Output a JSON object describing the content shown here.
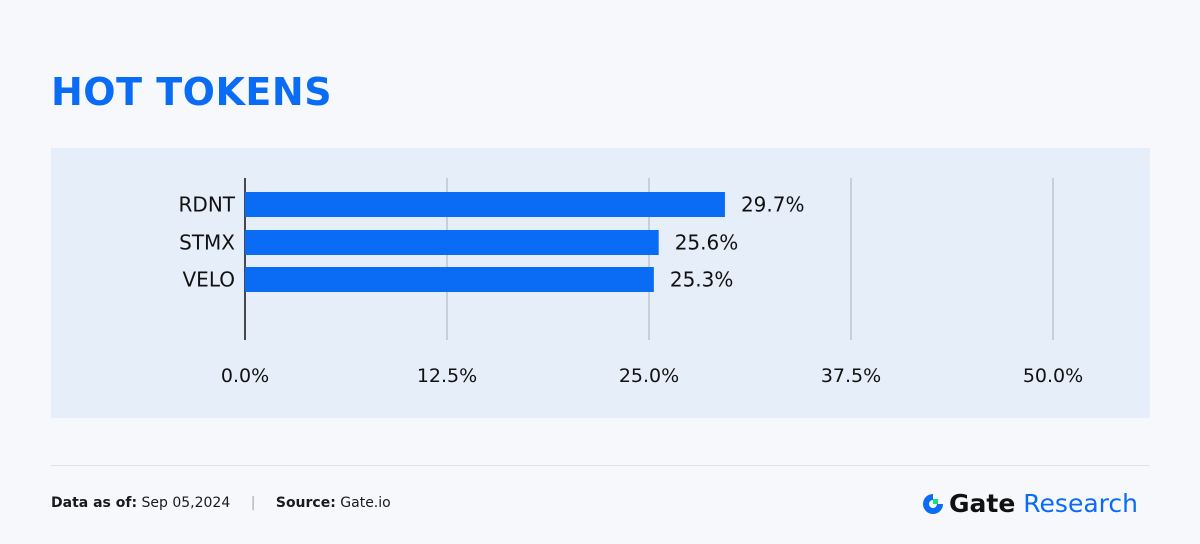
{
  "title": "HOT TOKENS",
  "chart_data": {
    "type": "bar",
    "orientation": "horizontal",
    "categories": [
      "RDNT",
      "STMX",
      "VELO"
    ],
    "values": [
      29.7,
      25.6,
      25.3
    ],
    "data_labels": [
      "29.7%",
      "25.6%",
      "25.3%"
    ],
    "xlim": [
      0,
      50
    ],
    "xticks": [
      "0.0%",
      "12.5%",
      "25.0%",
      "37.5%",
      "50.0%"
    ],
    "xtick_values": [
      0,
      12.5,
      25,
      37.5,
      50
    ],
    "grid": true,
    "bar_color": "#0a6cf5"
  },
  "footer": {
    "date_label": "Data as of:",
    "date": "Sep 05,2024",
    "source_label": "Source:",
    "source": "Gate.io"
  },
  "logo": {
    "brand": "Gate",
    "suffix": "Research"
  }
}
